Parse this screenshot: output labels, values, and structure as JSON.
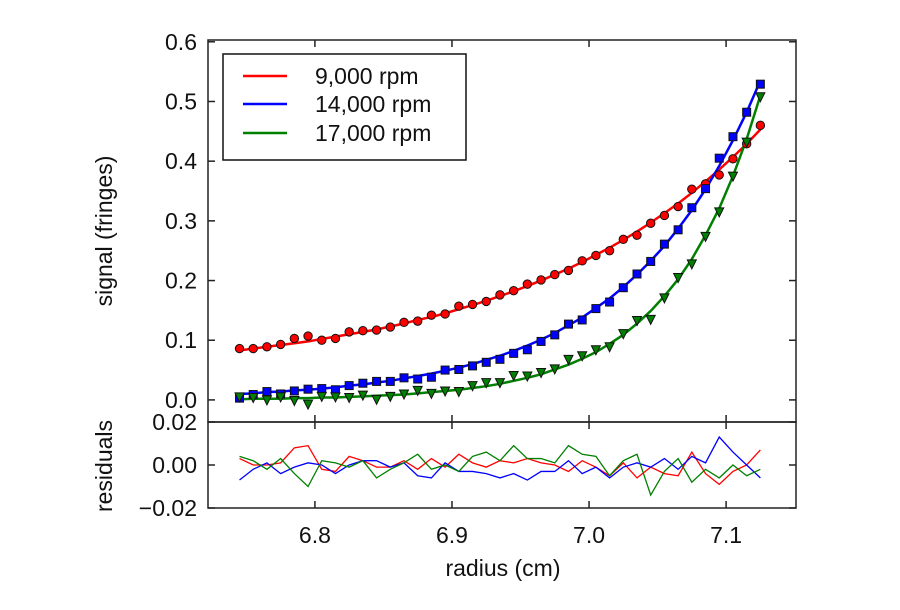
{
  "chart_data": {
    "type": "scatter",
    "xlabel": "radius (cm)",
    "ylabel": "signal (fringes)",
    "residual_ylabel": "residuals",
    "xlim": [
      6.722,
      7.151
    ],
    "ylim": [
      -0.037,
      0.603
    ],
    "residual_ylim": [
      -0.02,
      0.02
    ],
    "x_ticks": [
      "6.8",
      "6.9",
      "7.0",
      "7.1"
    ],
    "x_tick_values": [
      6.8,
      6.9,
      7.0,
      7.1
    ],
    "y_ticks": [
      "0.0",
      "0.1",
      "0.2",
      "0.3",
      "0.4",
      "0.5",
      "0.6"
    ],
    "y_tick_values": [
      0,
      0.1,
      0.2,
      0.3,
      0.4,
      0.5,
      0.6
    ],
    "residual_ticks": [
      "−0.02",
      "0.00",
      "0.02"
    ],
    "residual_tick_values": [
      -0.02,
      0,
      0.02
    ],
    "legend_position": "top-left",
    "grid": false,
    "x_start": 6.745,
    "x_step": 0.01,
    "series": [
      {
        "name": "9,000 rpm",
        "color": "#ff0000",
        "marker": "circle",
        "fit": [
          0.083,
          0.086,
          0.089,
          0.092,
          0.095,
          0.098,
          0.102,
          0.106,
          0.11,
          0.114,
          0.118,
          0.123,
          0.128,
          0.134,
          0.139,
          0.145,
          0.152,
          0.159,
          0.166,
          0.174,
          0.182,
          0.191,
          0.2,
          0.21,
          0.22,
          0.231,
          0.243,
          0.255,
          0.268,
          0.282,
          0.297,
          0.313,
          0.329,
          0.347,
          0.366,
          0.386,
          0.407,
          0.429,
          0.453
        ],
        "residuals": [
          0.003,
          0.0,
          0.0,
          0.001,
          0.008,
          0.009,
          -0.002,
          -0.003,
          0.004,
          0.002,
          -0.001,
          -0.001,
          0.002,
          -0.002,
          0.003,
          -0.001,
          0.005,
          0.001,
          -0.001,
          0.002,
          0.001,
          0.003,
          0.001,
          0.0,
          -0.003,
          0.002,
          -0.001,
          -0.005,
          0.001,
          -0.006,
          -0.001,
          -0.004,
          -0.005,
          0.006,
          -0.004,
          -0.009,
          -0.003,
          0.0,
          0.007
        ]
      },
      {
        "name": "14,000 rpm",
        "color": "#0000ff",
        "marker": "square",
        "fit": [
          0.01,
          0.011,
          0.013,
          0.014,
          0.016,
          0.017,
          0.019,
          0.021,
          0.024,
          0.026,
          0.029,
          0.032,
          0.036,
          0.04,
          0.044,
          0.049,
          0.054,
          0.06,
          0.067,
          0.074,
          0.082,
          0.091,
          0.101,
          0.112,
          0.125,
          0.138,
          0.154,
          0.17,
          0.189,
          0.21,
          0.233,
          0.258,
          0.287,
          0.318,
          0.353,
          0.392,
          0.435,
          0.482,
          0.535
        ],
        "residuals": [
          -0.007,
          -0.002,
          0.001,
          -0.004,
          -0.001,
          0.001,
          0.0,
          -0.004,
          0.0,
          0.002,
          0.002,
          -0.001,
          0.001,
          -0.005,
          -0.006,
          0.001,
          -0.003,
          -0.003,
          -0.004,
          -0.006,
          -0.004,
          -0.007,
          -0.003,
          -0.003,
          0.002,
          -0.004,
          -0.001,
          -0.006,
          -0.001,
          0.001,
          -0.001,
          0.003,
          -0.002,
          0.004,
          0.001,
          0.013,
          0.006,
          0.0,
          -0.006
        ]
      },
      {
        "name": "17,000 rpm",
        "color": "#008000",
        "marker": "triangle-down",
        "fit": [
          0.001,
          0.002,
          0.002,
          0.002,
          0.003,
          0.003,
          0.004,
          0.004,
          0.005,
          0.006,
          0.007,
          0.008,
          0.009,
          0.011,
          0.013,
          0.015,
          0.017,
          0.02,
          0.023,
          0.027,
          0.032,
          0.037,
          0.043,
          0.051,
          0.059,
          0.069,
          0.08,
          0.094,
          0.109,
          0.128,
          0.149,
          0.174,
          0.202,
          0.236,
          0.276,
          0.321,
          0.375,
          0.437,
          0.51
        ],
        "residuals": [
          0.004,
          0.002,
          -0.002,
          0.003,
          -0.004,
          -0.01,
          0.002,
          0.001,
          -0.001,
          0.002,
          -0.006,
          -0.002,
          0.001,
          0.005,
          -0.002,
          0.0,
          -0.003,
          0.004,
          0.006,
          0.002,
          0.009,
          0.003,
          0.003,
          0.001,
          0.009,
          0.005,
          0.004,
          -0.005,
          0.002,
          0.005,
          -0.014,
          -0.003,
          0.003,
          -0.008,
          -0.002,
          -0.006,
          0.0,
          -0.005,
          -0.002
        ]
      }
    ]
  }
}
